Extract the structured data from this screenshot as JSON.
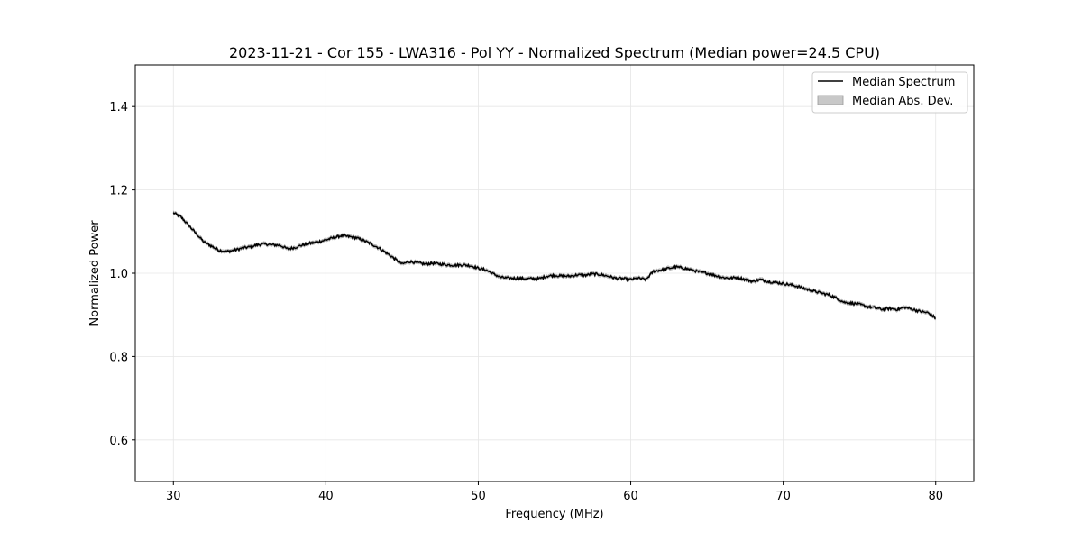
{
  "chart_data": {
    "type": "line",
    "title": "2023-11-21 - Cor 155 - LWA316 - Pol YY - Normalized Spectrum (Median power=24.5 CPU)",
    "xlabel": "Frequency (MHz)",
    "ylabel": "Normalized Power",
    "xlim": [
      27.5,
      82.5
    ],
    "ylim": [
      0.5,
      1.5
    ],
    "xticks": [
      30,
      40,
      50,
      60,
      70,
      80
    ],
    "xtick_labels": [
      "30",
      "40",
      "50",
      "60",
      "70",
      "80"
    ],
    "yticks": [
      0.6,
      0.8,
      1.0,
      1.2,
      1.4
    ],
    "ytick_labels": [
      "0.6",
      "0.8",
      "1.0",
      "1.2",
      "1.4"
    ],
    "grid": true,
    "legend_position": "top-right",
    "series": [
      {
        "name": "Median Spectrum",
        "kind": "line",
        "color": "#000000",
        "x": [
          30.0,
          30.5,
          31.0,
          31.5,
          32.0,
          32.5,
          33.0,
          33.5,
          34.0,
          34.5,
          35.0,
          35.5,
          36.0,
          36.5,
          37.0,
          37.5,
          38.0,
          38.5,
          39.0,
          39.5,
          40.0,
          40.5,
          41.0,
          41.5,
          42.0,
          42.5,
          43.0,
          43.5,
          44.0,
          44.5,
          45.0,
          45.5,
          46.0,
          46.5,
          47.0,
          47.5,
          48.0,
          48.5,
          49.0,
          49.5,
          50.0,
          50.5,
          51.0,
          51.5,
          52.0,
          52.5,
          53.0,
          53.5,
          54.0,
          54.5,
          55.0,
          55.5,
          56.0,
          56.5,
          57.0,
          57.5,
          58.0,
          58.5,
          59.0,
          59.5,
          60.0,
          60.5,
          61.0,
          61.5,
          62.0,
          62.5,
          63.0,
          63.5,
          64.0,
          64.5,
          65.0,
          65.5,
          66.0,
          66.5,
          67.0,
          67.5,
          68.0,
          68.5,
          69.0,
          69.5,
          70.0,
          70.5,
          71.0,
          71.5,
          72.0,
          72.5,
          73.0,
          73.5,
          74.0,
          74.5,
          75.0,
          75.5,
          76.0,
          76.5,
          77.0,
          77.5,
          78.0,
          78.5,
          79.0,
          79.5,
          80.0
        ],
        "y": [
          1.145,
          1.135,
          1.115,
          1.095,
          1.075,
          1.065,
          1.055,
          1.052,
          1.055,
          1.06,
          1.063,
          1.068,
          1.07,
          1.068,
          1.067,
          1.058,
          1.062,
          1.068,
          1.072,
          1.075,
          1.08,
          1.085,
          1.09,
          1.088,
          1.085,
          1.078,
          1.07,
          1.06,
          1.048,
          1.035,
          1.022,
          1.028,
          1.025,
          1.022,
          1.024,
          1.022,
          1.02,
          1.019,
          1.02,
          1.018,
          1.012,
          1.008,
          0.998,
          0.99,
          0.988,
          0.988,
          0.987,
          0.987,
          0.987,
          0.993,
          0.995,
          0.993,
          0.993,
          0.996,
          0.995,
          0.998,
          0.997,
          0.993,
          0.988,
          0.987,
          0.985,
          0.988,
          0.985,
          1.005,
          1.008,
          1.012,
          1.015,
          1.012,
          1.008,
          1.003,
          1.0,
          0.995,
          0.99,
          0.988,
          0.99,
          0.985,
          0.98,
          0.985,
          0.98,
          0.978,
          0.975,
          0.972,
          0.968,
          0.962,
          0.957,
          0.952,
          0.948,
          0.94,
          0.93,
          0.928,
          0.925,
          0.92,
          0.917,
          0.913,
          0.915,
          0.913,
          0.918,
          0.913,
          0.908,
          0.905,
          0.892
        ]
      },
      {
        "name": "Median Abs. Dev.",
        "kind": "band",
        "color": "#c8c8c8",
        "half_width": 0.004
      }
    ]
  }
}
